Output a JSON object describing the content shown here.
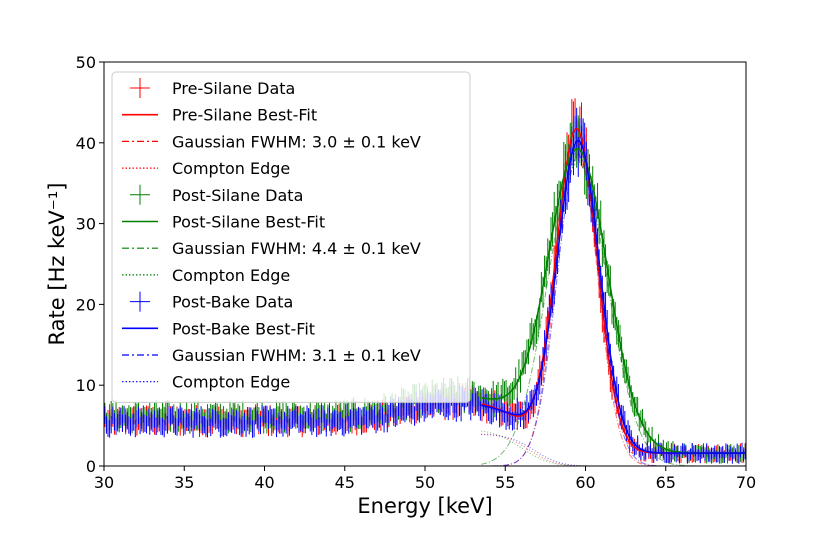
{
  "chart_data": {
    "type": "line",
    "title": "",
    "xlabel": "Energy [keV]",
    "ylabel": "Rate [Hz keV⁻¹]",
    "xlim": [
      30,
      70
    ],
    "ylim": [
      0,
      50
    ],
    "xticks": [
      30,
      35,
      40,
      45,
      50,
      55,
      60,
      65,
      70
    ],
    "yticks": [
      0,
      10,
      20,
      30,
      40,
      50
    ],
    "grid": false,
    "legend_position": "upper-left",
    "series": [
      {
        "name": "Pre-Silane Data",
        "kind": "data",
        "color": "#ff0000",
        "group": "pre",
        "model": {
          "gauss_amp": 40.0,
          "gauss_mu": 59.45,
          "gauss_fwhm": 3.0,
          "edge_amp": 4.0,
          "edge_pos": 56.5,
          "edge_width": 1.8,
          "low_level": 1.6,
          "bump_amp": 2.4,
          "bump_mu": 52.0,
          "bump_sigma": 3.0
        }
      },
      {
        "name": "Pre-Silane Best-Fit",
        "kind": "fit",
        "color": "#ff0000",
        "group": "pre"
      },
      {
        "name": "Gaussian FWHM: 3.0 ± 0.1 keV",
        "kind": "gaussian",
        "color": "#ff0000",
        "group": "pre"
      },
      {
        "name": "Compton Edge",
        "kind": "compton",
        "color": "#ff0000",
        "group": "pre"
      },
      {
        "name": "Post-Silane Data",
        "kind": "data",
        "color": "#008000",
        "group": "post_silane",
        "model": {
          "gauss_amp": 37.5,
          "gauss_mu": 59.5,
          "gauss_fwhm": 4.4,
          "edge_amp": 4.5,
          "edge_pos": 56.0,
          "edge_width": 2.0,
          "low_level": 1.6,
          "bump_amp": 2.6,
          "bump_mu": 52.0,
          "bump_sigma": 3.0
        }
      },
      {
        "name": "Post-Silane Best-Fit",
        "kind": "fit",
        "color": "#008000",
        "group": "post_silane"
      },
      {
        "name": "Gaussian FWHM: 4.4 ± 0.1 keV",
        "kind": "gaussian",
        "color": "#008000",
        "group": "post_silane"
      },
      {
        "name": "Compton Edge",
        "kind": "compton",
        "color": "#008000",
        "group": "post_silane"
      },
      {
        "name": "Post-Bake Data",
        "kind": "data",
        "color": "#0000ff",
        "group": "post_bake",
        "model": {
          "gauss_amp": 38.5,
          "gauss_mu": 59.55,
          "gauss_fwhm": 3.1,
          "edge_amp": 3.9,
          "edge_pos": 56.8,
          "edge_width": 1.8,
          "low_level": 1.6,
          "bump_amp": 2.3,
          "bump_mu": 52.0,
          "bump_sigma": 3.0
        }
      },
      {
        "name": "Post-Bake Best-Fit",
        "kind": "fit",
        "color": "#0000ff",
        "group": "post_bake"
      },
      {
        "name": "Gaussian FWHM: 3.1 ± 0.1 keV",
        "kind": "gaussian",
        "color": "#0000ff",
        "group": "post_bake"
      },
      {
        "name": "Compton Edge",
        "kind": "compton",
        "color": "#0000ff",
        "group": "post_bake"
      }
    ]
  }
}
